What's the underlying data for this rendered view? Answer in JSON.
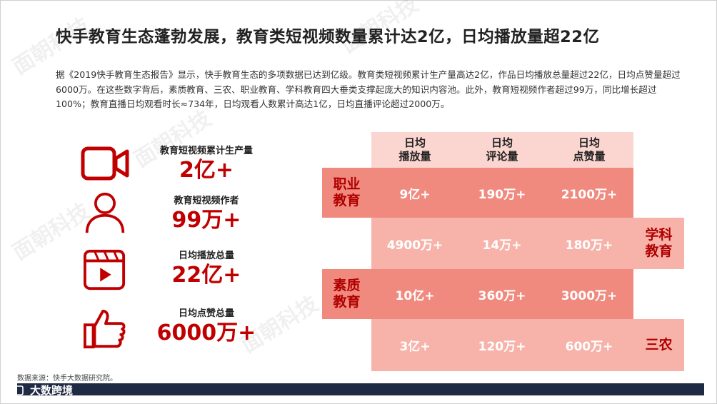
{
  "title": "快手教育生态蓬勃发展，教育类短视频数量累计达2亿，日均播放量超22亿",
  "body": "据《2019快手教育生态报告》显示，快手教育生态的多项数据已达到亿级。教育类短视频累计生产量高达2亿，作品日均播放总量超过22亿，日均点赞量超过6000万。在这些数字背后，素质教育、三农、职业教育、学科教育四大垂类支撑起庞大的知识内容池。此外，教育短视频作者超过99万，同比增长超过100%；教育直播日均观看时长≈734年，日均观看人数累计高达1亿，日均直播评论超过2000万。",
  "stats": [
    {
      "label": "教育短视频累计生产量",
      "value": "2亿+",
      "icon": "video-camera-icon"
    },
    {
      "label": "教育短视频作者",
      "value": "99万+",
      "icon": "person-icon"
    },
    {
      "label": "日均播放总量",
      "value": "22亿+",
      "icon": "video-play-icon"
    },
    {
      "label": "日均点赞总量",
      "value": "6000万+",
      "icon": "thumbs-up-icon"
    }
  ],
  "table": {
    "headers": [
      {
        "line1": "日均",
        "line2": "播放量"
      },
      {
        "line1": "日均",
        "line2": "评论量"
      },
      {
        "line1": "日均",
        "line2": "点赞量"
      }
    ],
    "rows": [
      {
        "label": "职业\n教育",
        "label1": "职业",
        "label2": "教育",
        "values": [
          "9亿+",
          "190万+",
          "2100万+"
        ]
      },
      {
        "label1": "学科",
        "label2": "教育",
        "values": [
          "4900万+",
          "14万+",
          "180万+"
        ]
      },
      {
        "label1": "素质",
        "label2": "教育",
        "values": [
          "10亿+",
          "360万+",
          "3000万+"
        ]
      },
      {
        "label1": "三农",
        "label2": "",
        "values": [
          "3亿+",
          "120万+",
          "600万+"
        ]
      }
    ]
  },
  "source": "数据来源：快手大数据研究院。",
  "brand": "大数跨境",
  "watermark": "面朝科技",
  "colors": {
    "accent": "#c00000",
    "band_dark": "#f08a7f",
    "band_light": "#f7b3a9",
    "header": "#fbd6d0",
    "footer": "#1f2a44"
  }
}
